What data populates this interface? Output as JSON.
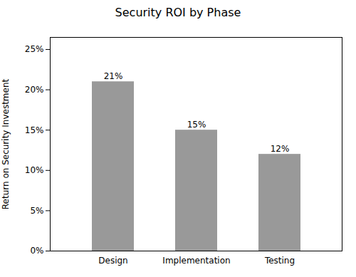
{
  "chart_data": {
    "type": "bar",
    "title": "Security ROI by Phase",
    "categories": [
      "Design",
      "Implementation",
      "Testing"
    ],
    "values": [
      21,
      15,
      12
    ],
    "value_labels": [
      "21%",
      "15%",
      "12%"
    ],
    "data_labels": true,
    "color": "#999999",
    "ylabel": "Return on Security Investment",
    "ylim": [
      0,
      26.5
    ],
    "yticks": [
      {
        "value": 0,
        "label": "0%"
      },
      {
        "value": 5,
        "label": "5%"
      },
      {
        "value": 10,
        "label": "10%"
      },
      {
        "value": 15,
        "label": "15%"
      },
      {
        "value": 20,
        "label": "20%"
      },
      {
        "value": 25,
        "label": "25%"
      }
    ],
    "grid": false
  }
}
